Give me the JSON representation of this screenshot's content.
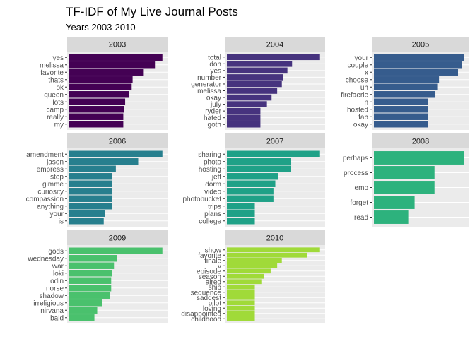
{
  "chart_data": {
    "type": "bar",
    "orientation": "horizontal",
    "title": "TF-IDF of My Live Journal Posts",
    "subtitle": "Years 2003-2010",
    "grid": true,
    "panels": [
      {
        "name": "2003",
        "color": "#440154",
        "categories": [
          "yes",
          "melissa",
          "favorite",
          "thats",
          "ok",
          "queen",
          "lots",
          "camp",
          "really",
          "my"
        ],
        "values": [
          1.0,
          0.92,
          0.8,
          0.68,
          0.67,
          0.64,
          0.6,
          0.59,
          0.58,
          0.58
        ]
      },
      {
        "name": "2004",
        "color": "#46337E",
        "categories": [
          "total",
          "don",
          "yes",
          "number",
          "generator",
          "melissa",
          "okay",
          "july",
          "ryder",
          "hated",
          "goth"
        ],
        "values": [
          1.0,
          0.7,
          0.65,
          0.6,
          0.59,
          0.54,
          0.48,
          0.43,
          0.36,
          0.36,
          0.36
        ]
      },
      {
        "name": "2005",
        "color": "#365C8D",
        "categories": [
          "your",
          "couple",
          "x",
          "choose",
          "uh",
          "firefaerie",
          "n",
          "hosted",
          "fab",
          "okay"
        ],
        "values": [
          1.0,
          0.97,
          0.93,
          0.72,
          0.7,
          0.68,
          0.6,
          0.6,
          0.6,
          0.6
        ]
      },
      {
        "name": "2006",
        "color": "#277F8E",
        "categories": [
          "amendment",
          "jason",
          "empress",
          "step",
          "gimme",
          "curiosity",
          "compassion",
          "anything",
          "your",
          "is"
        ],
        "values": [
          1.0,
          0.74,
          0.5,
          0.46,
          0.46,
          0.46,
          0.46,
          0.46,
          0.38,
          0.37
        ]
      },
      {
        "name": "2007",
        "color": "#1FA187",
        "categories": [
          "sharing",
          "photo",
          "hosting",
          "jeff",
          "dorm",
          "video",
          "photobucket",
          "trips",
          "plans",
          "college"
        ],
        "values": [
          1.0,
          0.69,
          0.69,
          0.55,
          0.52,
          0.5,
          0.5,
          0.3,
          0.3,
          0.3
        ]
      },
      {
        "name": "2008",
        "color": "#2DB27D",
        "categories": [
          "perhaps",
          "process",
          "emo",
          "forget",
          "read"
        ],
        "values": [
          1.0,
          0.67,
          0.67,
          0.45,
          0.38
        ]
      },
      {
        "name": "2009",
        "color": "#4AC16D",
        "categories": [
          "gods",
          "wednesday",
          "war",
          "loki",
          "odin",
          "norse",
          "shadow",
          "irreligious",
          "nirvana",
          "bald"
        ],
        "values": [
          1.0,
          0.51,
          0.48,
          0.46,
          0.45,
          0.45,
          0.44,
          0.35,
          0.3,
          0.27
        ]
      },
      {
        "name": "2010",
        "color": "#A0DA39",
        "categories": [
          "show",
          "favorite",
          "finale",
          "v",
          "episode",
          "season",
          "aired",
          "ship",
          "sequence",
          "saddest",
          "pilot",
          "loving",
          "disappointed",
          "childhood"
        ],
        "values": [
          1.0,
          0.86,
          0.59,
          0.54,
          0.47,
          0.4,
          0.37,
          0.3,
          0.3,
          0.3,
          0.3,
          0.3,
          0.3,
          0.3
        ]
      }
    ]
  }
}
